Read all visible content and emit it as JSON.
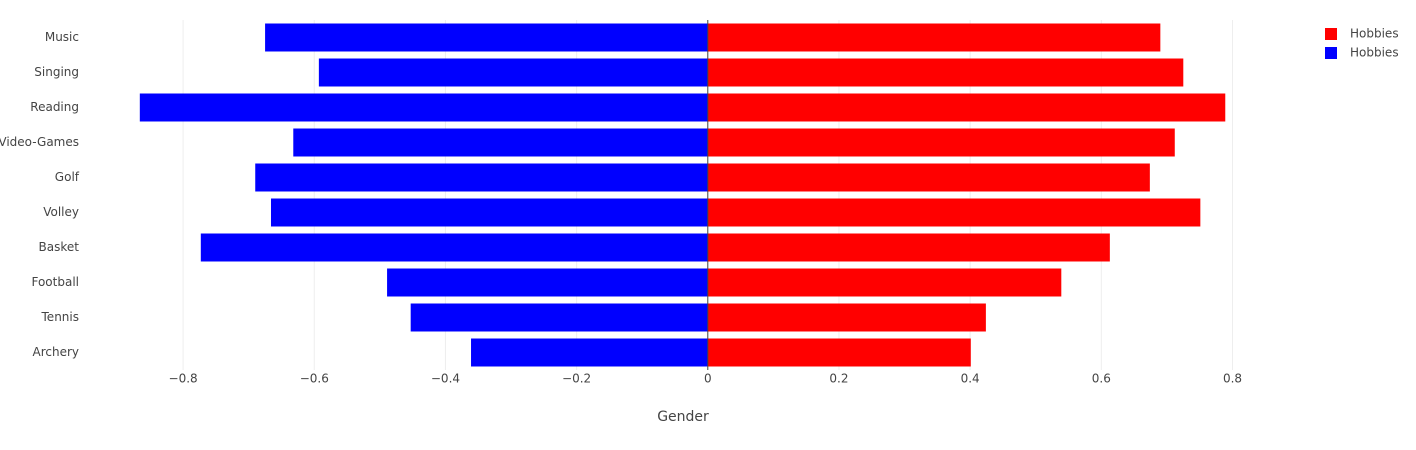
{
  "chart_data": {
    "type": "hbar",
    "categories": [
      "Music",
      "Singing",
      "Reading",
      "Video-Games",
      "Golf",
      "Volley",
      "Basket",
      "Football",
      "Tennis",
      "Archery"
    ],
    "series": [
      {
        "name": "Hobbies",
        "color": "#ff0000",
        "values": [
          0.69,
          0.725,
          0.789,
          0.712,
          0.674,
          0.751,
          0.613,
          0.539,
          0.424,
          0.401
        ]
      },
      {
        "name": "Hobbies",
        "color": "#0000ff",
        "values": [
          -0.675,
          -0.593,
          -0.866,
          -0.632,
          -0.69,
          -0.666,
          -0.773,
          -0.489,
          -0.453,
          -0.361
        ]
      }
    ],
    "x_label": "Gender",
    "xlim": [
      -0.945,
      0.845
    ],
    "xticks": [
      {
        "value": -0.8,
        "label": "−0.8"
      },
      {
        "value": -0.6,
        "label": "−0.6"
      },
      {
        "value": -0.4,
        "label": "−0.4"
      },
      {
        "value": -0.2,
        "label": "−0.2"
      },
      0,
      0.2,
      0.4,
      0.6,
      0.8
    ],
    "grid": true,
    "legend": "top-right"
  }
}
